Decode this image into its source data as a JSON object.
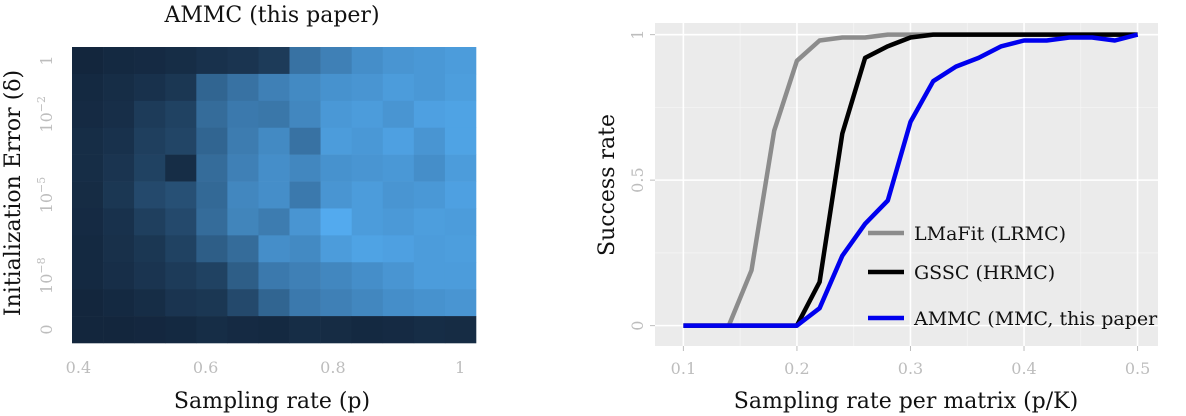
{
  "chart_data": [
    {
      "type": "heatmap",
      "title": "AMMC (this paper)",
      "xlabel": "Sampling rate (p)",
      "ylabel": "Initialization Error (δ)",
      "x_ticks": [
        "0.4",
        "0.6",
        "0.8",
        "1"
      ],
      "x_tick_values": [
        0.4,
        0.6,
        0.8,
        1.0
      ],
      "xlim": [
        0.39,
        1.025
      ],
      "y_ticks": [
        {
          "base": "0",
          "exp": ""
        },
        {
          "base": "10",
          "exp": "−8"
        },
        {
          "base": "10",
          "exp": "−5"
        },
        {
          "base": "10",
          "exp": "−2"
        },
        {
          "base": "1",
          "exp": ""
        }
      ],
      "y_tick_rows": [
        0,
        2,
        5,
        8,
        10
      ],
      "columns": 13,
      "rows": 11,
      "color_low": "#13263d",
      "color_high": "#56b1f7",
      "values": [
        [
          0.0,
          0.02,
          0.03,
          0.05,
          0.08,
          0.1,
          0.15,
          0.55,
          0.65,
          0.75,
          0.8,
          0.82,
          0.85
        ],
        [
          0.02,
          0.05,
          0.08,
          0.12,
          0.45,
          0.55,
          0.65,
          0.72,
          0.78,
          0.8,
          0.85,
          0.82,
          0.86
        ],
        [
          0.03,
          0.06,
          0.15,
          0.2,
          0.5,
          0.6,
          0.58,
          0.7,
          0.82,
          0.85,
          0.8,
          0.88,
          0.9
        ],
        [
          0.05,
          0.08,
          0.18,
          0.22,
          0.45,
          0.62,
          0.72,
          0.55,
          0.85,
          0.82,
          0.88,
          0.8,
          0.9
        ],
        [
          0.05,
          0.1,
          0.2,
          0.05,
          0.5,
          0.65,
          0.75,
          0.7,
          0.78,
          0.8,
          0.82,
          0.75,
          0.85
        ],
        [
          0.04,
          0.12,
          0.25,
          0.3,
          0.48,
          0.7,
          0.75,
          0.6,
          0.8,
          0.85,
          0.8,
          0.82,
          0.88
        ],
        [
          0.03,
          0.08,
          0.18,
          0.25,
          0.5,
          0.68,
          0.62,
          0.8,
          0.95,
          0.85,
          0.83,
          0.86,
          0.85
        ],
        [
          0.02,
          0.07,
          0.12,
          0.2,
          0.4,
          0.5,
          0.75,
          0.72,
          0.85,
          0.9,
          0.88,
          0.85,
          0.86
        ],
        [
          0.02,
          0.06,
          0.1,
          0.15,
          0.2,
          0.4,
          0.6,
          0.65,
          0.7,
          0.75,
          0.8,
          0.85,
          0.85
        ],
        [
          0.0,
          0.02,
          0.05,
          0.1,
          0.12,
          0.25,
          0.45,
          0.6,
          0.65,
          0.7,
          0.75,
          0.78,
          0.8
        ],
        [
          0.0,
          0.0,
          0.01,
          0.02,
          0.05,
          0.03,
          0.02,
          0.05,
          0.04,
          0.02,
          0.03,
          0.05,
          0.04
        ]
      ],
      "grid": false
    },
    {
      "type": "line",
      "xlabel": "Sampling rate per matrix (p/K)",
      "ylabel": "Success rate",
      "x_ticks": [
        "0.1",
        "0.2",
        "0.3",
        "0.4",
        "0.5"
      ],
      "x_tick_values": [
        0.1,
        0.2,
        0.3,
        0.4,
        0.5
      ],
      "y_ticks": [
        "0",
        "0.5",
        "1"
      ],
      "y_tick_values": [
        0,
        0.5,
        1
      ],
      "xlim": [
        0.075,
        0.518
      ],
      "ylim": [
        -0.07,
        1.04
      ],
      "grid": true,
      "background": "#ebebeb",
      "legend": "bottom-right",
      "series": [
        {
          "name": "LMaFit (LRMC)",
          "color": "#8c8c8c",
          "x": [
            0.1,
            0.12,
            0.14,
            0.16,
            0.18,
            0.2,
            0.22,
            0.24,
            0.26,
            0.28,
            0.3,
            0.32,
            0.34,
            0.36,
            0.38,
            0.4,
            0.42,
            0.44,
            0.46,
            0.48,
            0.5
          ],
          "y": [
            0,
            0,
            0,
            0.19,
            0.67,
            0.91,
            0.98,
            0.99,
            0.99,
            1,
            1,
            1,
            1,
            1,
            1,
            1,
            1,
            1,
            1,
            1,
            1
          ]
        },
        {
          "name": "GSSC (HRMC)",
          "color": "#000000",
          "x": [
            0.1,
            0.12,
            0.14,
            0.16,
            0.18,
            0.2,
            0.22,
            0.24,
            0.26,
            0.28,
            0.3,
            0.32,
            0.34,
            0.36,
            0.38,
            0.4,
            0.42,
            0.44,
            0.46,
            0.48,
            0.5
          ],
          "y": [
            0,
            0,
            0,
            0,
            0,
            0,
            0.15,
            0.66,
            0.92,
            0.96,
            0.99,
            1,
            1,
            1,
            1,
            1,
            1,
            1,
            1,
            1,
            1
          ]
        },
        {
          "name": "AMMC (MMC, this paper",
          "color": "#0000ee",
          "x": [
            0.1,
            0.12,
            0.14,
            0.16,
            0.18,
            0.2,
            0.22,
            0.24,
            0.26,
            0.28,
            0.3,
            0.32,
            0.34,
            0.36,
            0.38,
            0.4,
            0.42,
            0.44,
            0.46,
            0.48,
            0.5
          ],
          "y": [
            0,
            0,
            0,
            0,
            0,
            0,
            0.06,
            0.24,
            0.35,
            0.43,
            0.7,
            0.84,
            0.89,
            0.92,
            0.96,
            0.98,
            0.98,
            0.99,
            0.99,
            0.98,
            1
          ]
        }
      ]
    }
  ]
}
